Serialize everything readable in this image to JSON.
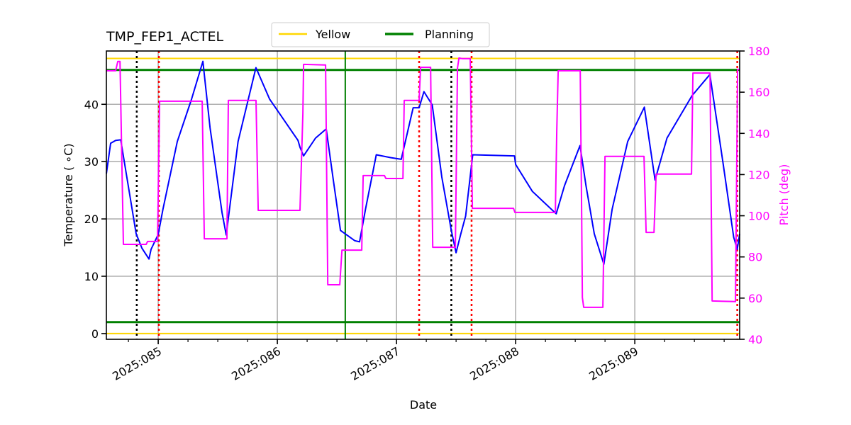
{
  "chart_data": {
    "type": "line",
    "title": "TMP_FEP1_ACTEL",
    "xlabel": "Date",
    "ylabel": "Temperature ($^\\circ$C)",
    "ylabel_display": "Temperature ( ∘C)",
    "ylabel_right": "Pitch (deg)",
    "xlim": [
      84.565,
      89.88
    ],
    "ylim": [
      -1.0,
      49.3
    ],
    "ylim_right": [
      40,
      180
    ],
    "x_ticks": [
      {
        "value": 85,
        "label": "2025:085"
      },
      {
        "value": 86,
        "label": "2025:086"
      },
      {
        "value": 87,
        "label": "2025:087"
      },
      {
        "value": 88,
        "label": "2025:088"
      },
      {
        "value": 89,
        "label": "2025:089"
      }
    ],
    "x_minor_tick_step": 0.25,
    "y_ticks": [
      0,
      10,
      20,
      30,
      40
    ],
    "y_ticks_right": [
      40,
      60,
      80,
      100,
      120,
      140,
      160,
      180
    ],
    "grid": true,
    "legend": {
      "position": "upper center (above axes)",
      "entries": [
        {
          "label": "Yellow",
          "color": "#ffd700"
        },
        {
          "label": "Planning",
          "color": "#008000"
        }
      ]
    },
    "limit_lines": [
      {
        "name": "Yellow high",
        "y": 48.0,
        "color": "#ffd700",
        "width": 2
      },
      {
        "name": "Yellow low",
        "y": 0.0,
        "color": "#ffd700",
        "width": 2
      },
      {
        "name": "Planning high",
        "y": 46.0,
        "color": "#008000",
        "width": 3
      },
      {
        "name": "Planning low",
        "y": 2.0,
        "color": "#008000",
        "width": 3
      }
    ],
    "vertical_lines": [
      {
        "x": 84.82,
        "color": "#000000",
        "style": "dotted"
      },
      {
        "x": 85.006,
        "color": "#ff0000",
        "style": "dotted"
      },
      {
        "x": 86.57,
        "color": "#008000",
        "style": "solid"
      },
      {
        "x": 87.19,
        "color": "#ff0000",
        "style": "dotted"
      },
      {
        "x": 87.46,
        "color": "#000000",
        "style": "dotted"
      },
      {
        "x": 87.63,
        "color": "#ff0000",
        "style": "dotted"
      },
      {
        "x": 89.86,
        "color": "#ff0000",
        "style": "dotted"
      }
    ],
    "series": [
      {
        "name": "TMP_FEP1_ACTEL",
        "axis": "left",
        "color": "#0000ff",
        "x": [
          84.565,
          84.601,
          84.643,
          84.685,
          84.815,
          84.863,
          84.923,
          84.94,
          85.0,
          85.04,
          85.16,
          85.28,
          85.375,
          85.435,
          85.536,
          85.571,
          85.67,
          85.82,
          85.935,
          86.173,
          86.19,
          86.22,
          86.32,
          86.41,
          86.47,
          86.53,
          86.65,
          86.69,
          86.74,
          86.83,
          86.95,
          87.04,
          87.14,
          87.19,
          87.23,
          87.3,
          87.38,
          87.46,
          87.5,
          87.54,
          87.58,
          87.64,
          87.99,
          88.0,
          88.14,
          88.34,
          88.41,
          88.54,
          88.59,
          88.66,
          88.74,
          88.81,
          88.94,
          89.08,
          89.17,
          89.27,
          89.48,
          89.63,
          89.74,
          89.83,
          89.86,
          89.88
        ],
        "y": [
          27.9,
          33.2,
          33.7,
          33.8,
          17.4,
          14.9,
          13.0,
          14.7,
          17.3,
          21.7,
          33.5,
          40.9,
          47.5,
          35.9,
          21.1,
          17.2,
          33.5,
          46.4,
          40.9,
          33.7,
          32.5,
          31.0,
          34.1,
          35.7,
          26.7,
          18.0,
          16.2,
          16.0,
          21.7,
          31.2,
          30.7,
          30.4,
          39.4,
          39.4,
          42.2,
          39.9,
          27.3,
          18.0,
          14.1,
          17.4,
          20.5,
          31.2,
          31.0,
          29.5,
          24.8,
          20.9,
          25.8,
          32.8,
          25.8,
          17.4,
          12.1,
          21.7,
          33.5,
          39.5,
          26.8,
          34.1,
          41.5,
          45.2,
          29.8,
          16.8,
          14.7,
          17.4
        ]
      },
      {
        "name": "Pitch",
        "axis": "right",
        "color": "#ff00ff",
        "x": [
          84.565,
          84.643,
          84.661,
          84.679,
          84.708,
          84.899,
          84.911,
          84.994,
          85.012,
          85.369,
          85.387,
          85.577,
          85.589,
          85.821,
          85.839,
          86.19,
          86.214,
          86.22,
          86.405,
          86.423,
          86.524,
          86.542,
          86.708,
          86.72,
          86.899,
          86.911,
          87.054,
          87.065,
          87.19,
          87.202,
          87.286,
          87.304,
          87.494,
          87.512,
          87.524,
          87.554,
          87.619,
          87.637,
          87.982,
          87.994,
          88.333,
          88.345,
          88.357,
          88.542,
          88.554,
          88.56,
          88.571,
          88.732,
          88.75,
          89.077,
          89.095,
          89.161,
          89.179,
          89.476,
          89.488,
          89.631,
          89.649,
          89.845,
          89.863,
          89.88
        ],
        "y": [
          170.4,
          170.4,
          174.9,
          174.9,
          86.1,
          86.1,
          87.5,
          87.5,
          155.6,
          155.6,
          88.8,
          88.8,
          156.0,
          156.0,
          102.6,
          102.6,
          149.7,
          173.5,
          173.2,
          66.5,
          66.5,
          83.3,
          83.3,
          119.5,
          119.5,
          118.1,
          118.1,
          156.0,
          156.0,
          172.1,
          172.1,
          84.7,
          84.7,
          171.7,
          176.6,
          176.3,
          176.3,
          103.6,
          103.6,
          101.6,
          101.6,
          141.1,
          170.4,
          170.4,
          100.9,
          60.3,
          55.5,
          55.5,
          128.8,
          128.8,
          91.9,
          91.9,
          120.2,
          120.2,
          169.3,
          169.3,
          58.6,
          58.3,
          171.1,
          171.1
        ]
      }
    ]
  }
}
